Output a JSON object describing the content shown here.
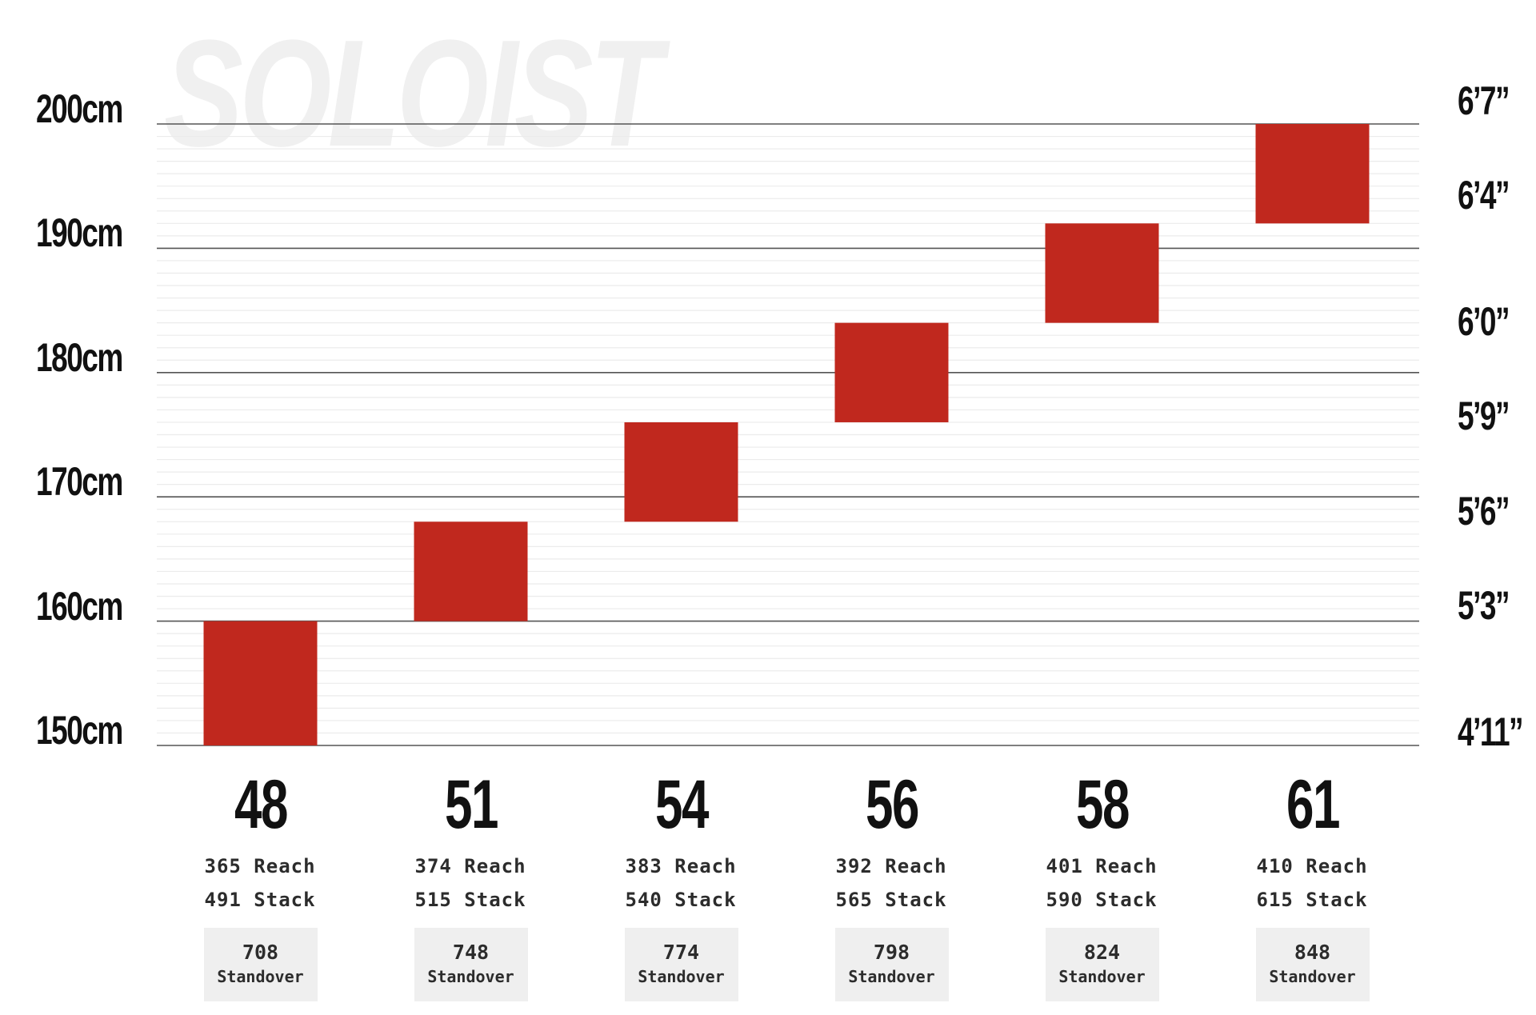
{
  "watermark_text": "SOLOIST",
  "chart_data": {
    "type": "bar",
    "title": "",
    "xlabel": "",
    "ylabel": "",
    "ylim": [
      150,
      200
    ],
    "grid": true,
    "left_ticks": [
      {
        "value": 200,
        "label": "200cm"
      },
      {
        "value": 190,
        "label": "190cm"
      },
      {
        "value": 180,
        "label": "180cm"
      },
      {
        "value": 170,
        "label": "170cm"
      },
      {
        "value": 160,
        "label": "160cm"
      },
      {
        "value": 150,
        "label": "150cm"
      }
    ],
    "right_ticks": [
      {
        "value": 200.66,
        "label": "6’7”"
      },
      {
        "value": 193.04,
        "label": "6’4”"
      },
      {
        "value": 182.88,
        "label": "6’0”"
      },
      {
        "value": 175.26,
        "label": "5’9”"
      },
      {
        "value": 167.64,
        "label": "5’6”"
      },
      {
        "value": 160.02,
        "label": "5’3”"
      },
      {
        "value": 149.86,
        "label": "4’11”"
      }
    ],
    "categories": [
      "48",
      "51",
      "54",
      "56",
      "58",
      "61"
    ],
    "ranges": [
      {
        "low": 150,
        "high": 160
      },
      {
        "low": 160,
        "high": 168
      },
      {
        "low": 168,
        "high": 176
      },
      {
        "low": 176,
        "high": 184
      },
      {
        "low": 184,
        "high": 192
      },
      {
        "low": 192,
        "high": 200
      }
    ],
    "bar_color": "#c0281e",
    "specs": [
      {
        "reach": "365 Reach",
        "stack": "491 Stack",
        "standover": "708",
        "standover_label": "Standover"
      },
      {
        "reach": "374 Reach",
        "stack": "515 Stack",
        "standover": "748",
        "standover_label": "Standover"
      },
      {
        "reach": "383 Reach",
        "stack": "540 Stack",
        "standover": "774",
        "standover_label": "Standover"
      },
      {
        "reach": "392 Reach",
        "stack": "565 Stack",
        "standover": "798",
        "standover_label": "Standover"
      },
      {
        "reach": "401 Reach",
        "stack": "590 Stack",
        "standover": "824",
        "standover_label": "Standover"
      },
      {
        "reach": "410 Reach",
        "stack": "615 Stack",
        "standover": "848",
        "standover_label": "Standover"
      }
    ]
  }
}
